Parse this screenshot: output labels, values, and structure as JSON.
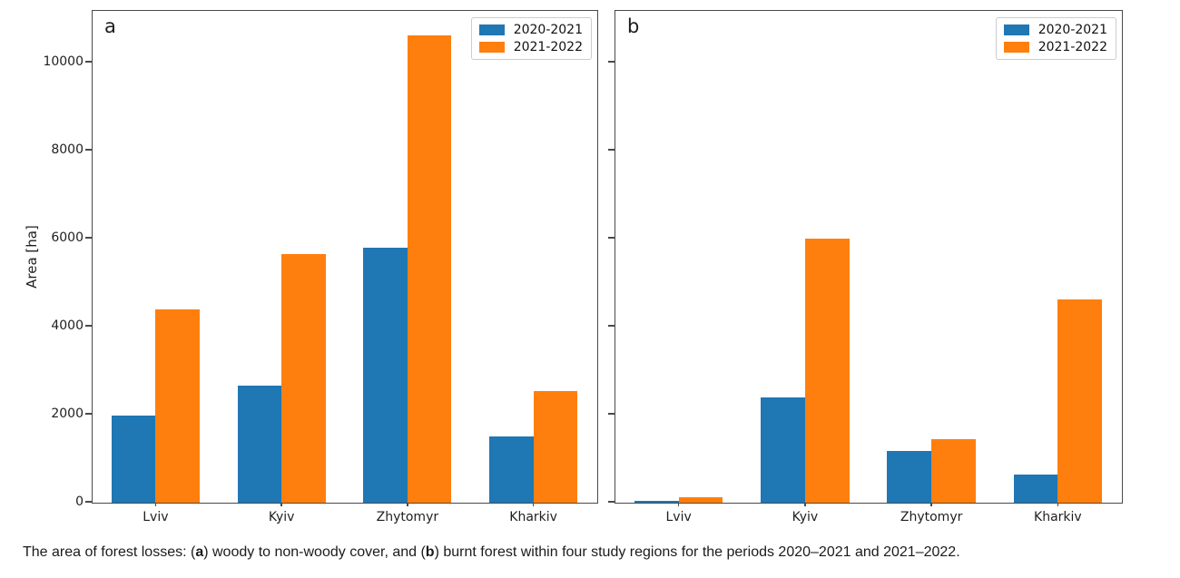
{
  "figure_caption": {
    "segments": [
      "The area of forest losses: (",
      "a",
      ") woody to non-woody cover, and (",
      "b",
      ") burnt forest within four study regions for the periods 2020–2021 and 2021–2022."
    ]
  },
  "chart_data": [
    {
      "type": "bar",
      "panel_label": "a",
      "title": "",
      "xlabel": "",
      "ylabel": "Area [ha]",
      "categories": [
        "Lviv",
        "Kyiv",
        "Zhytomyr",
        "Kharkiv"
      ],
      "series": [
        {
          "name": "2020-2021",
          "color": "#1f77b4",
          "values": [
            1970,
            2650,
            5790,
            1510
          ]
        },
        {
          "name": "2021-2022",
          "color": "#ff7f0e",
          "values": [
            4390,
            5650,
            10620,
            2530
          ]
        }
      ],
      "ylim": [
        0,
        11152
      ],
      "yticks": [
        0,
        2000,
        4000,
        6000,
        8000,
        10000
      ],
      "y_tick_labels_visible": true,
      "grid": false,
      "legend_position": "upper right"
    },
    {
      "type": "bar",
      "panel_label": "b",
      "title": "",
      "xlabel": "",
      "ylabel": "",
      "categories": [
        "Lviv",
        "Kyiv",
        "Zhytomyr",
        "Kharkiv"
      ],
      "series": [
        {
          "name": "2020-2021",
          "color": "#1f77b4",
          "values": [
            50,
            2400,
            1170,
            640
          ]
        },
        {
          "name": "2021-2022",
          "color": "#ff7f0e",
          "values": [
            120,
            6000,
            1450,
            4620
          ]
        }
      ],
      "ylim": [
        0,
        11152
      ],
      "yticks": [
        0,
        2000,
        4000,
        6000,
        8000,
        10000
      ],
      "y_tick_labels_visible": false,
      "grid": false,
      "legend_position": "upper right"
    }
  ],
  "colors": {
    "bar_blue": "#1f77b4",
    "bar_orange": "#ff7f0e",
    "spine": "#4a4a4a",
    "text": "#1f1f1f",
    "legend_border": "#cccccc",
    "background": "#ffffff"
  }
}
